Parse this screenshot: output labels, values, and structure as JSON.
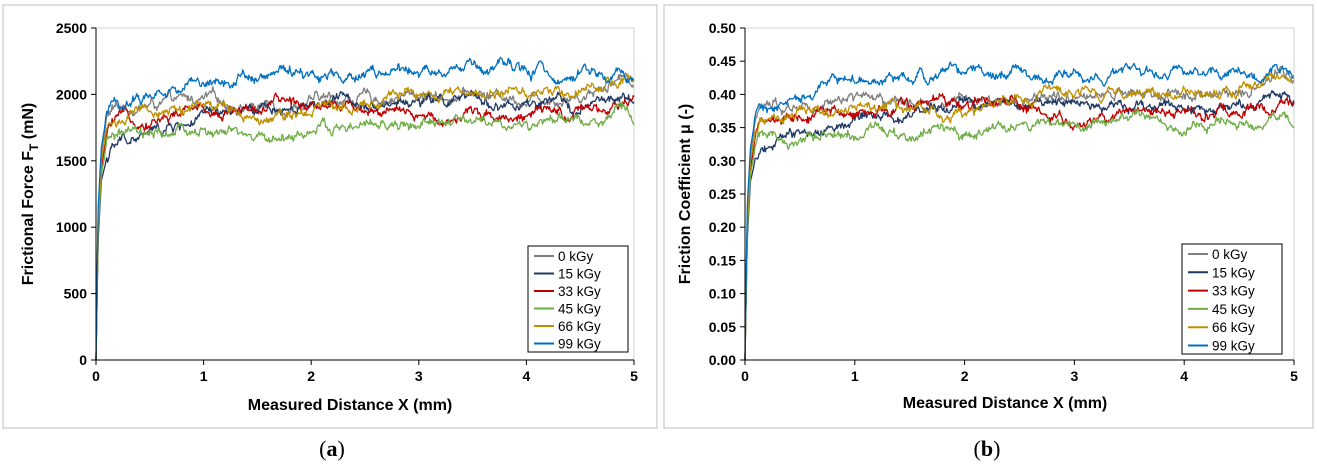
{
  "chart_data": [
    {
      "type": "line",
      "caption_open": "(",
      "caption_letter": "a",
      "caption_close": ")",
      "xlabel": "Measured Distance X (mm)",
      "ylabel_main": "Frictional Force F",
      "ylabel_sub": "T",
      "ylabel_unit": " (mN)",
      "xlim": [
        0,
        5
      ],
      "ylim": [
        0,
        2500
      ],
      "xticks": [
        0,
        1,
        2,
        3,
        4,
        5
      ],
      "xtick_labels": [
        "0",
        "1",
        "2",
        "3",
        "4",
        "5"
      ],
      "yticks": [
        0,
        500,
        1000,
        1500,
        2000,
        2500
      ],
      "ytick_labels": [
        "0",
        "500",
        "1000",
        "1500",
        "2000",
        "2500"
      ],
      "grid": false,
      "legend_position": "bottom-right",
      "series": [
        {
          "name": "0 kGy",
          "color": "#7f7f7f",
          "x": [
            0,
            0.02,
            0.05,
            0.1,
            0.15,
            0.25,
            0.5,
            0.75,
            1,
            1.5,
            2,
            2.5,
            3,
            3.5,
            4,
            4.5,
            4.9,
            5
          ],
          "values": [
            0,
            1100,
            1550,
            1820,
            1880,
            1900,
            1920,
            1930,
            1950,
            1920,
            1950,
            1970,
            1990,
            2000,
            1980,
            2000,
            2150,
            2100
          ]
        },
        {
          "name": "15 kGy",
          "color": "#1f3864",
          "x": [
            0,
            0.02,
            0.05,
            0.1,
            0.15,
            0.25,
            0.5,
            0.75,
            1,
            1.5,
            2,
            2.5,
            3,
            3.5,
            4,
            4.5,
            4.9,
            5
          ],
          "values": [
            0,
            900,
            1350,
            1520,
            1580,
            1650,
            1700,
            1760,
            1820,
            1850,
            1950,
            1960,
            1950,
            1940,
            1900,
            1900,
            1960,
            1900
          ]
        },
        {
          "name": "33 kGy",
          "color": "#c00000",
          "x": [
            0,
            0.02,
            0.05,
            0.1,
            0.15,
            0.25,
            0.5,
            0.75,
            1,
            1.5,
            2,
            2.5,
            3,
            3.5,
            4,
            4.5,
            4.9,
            5
          ],
          "values": [
            0,
            1000,
            1450,
            1700,
            1780,
            1800,
            1820,
            1850,
            1880,
            1900,
            1950,
            1920,
            1800,
            1870,
            1850,
            1830,
            1880,
            1950
          ]
        },
        {
          "name": "45 kGy",
          "color": "#70ad47",
          "x": [
            0,
            0.02,
            0.05,
            0.1,
            0.15,
            0.25,
            0.5,
            0.75,
            1,
            1.5,
            2,
            2.5,
            3,
            3.5,
            4,
            4.5,
            4.9,
            5
          ],
          "values": [
            0,
            950,
            1400,
            1620,
            1680,
            1700,
            1650,
            1700,
            1720,
            1650,
            1720,
            1750,
            1760,
            1790,
            1760,
            1800,
            1850,
            1800
          ]
        },
        {
          "name": "66 kGy",
          "color": "#bf9000",
          "x": [
            0,
            0.02,
            0.05,
            0.1,
            0.15,
            0.25,
            0.5,
            0.75,
            1,
            1.5,
            2,
            2.5,
            3,
            3.5,
            4,
            4.5,
            4.9,
            5
          ],
          "values": [
            0,
            1050,
            1500,
            1740,
            1800,
            1820,
            1850,
            1880,
            1900,
            1850,
            1920,
            1960,
            1980,
            2000,
            2020,
            2050,
            2120,
            2100
          ]
        },
        {
          "name": "99 kGy",
          "color": "#0070c0",
          "x": [
            0,
            0.02,
            0.05,
            0.1,
            0.15,
            0.25,
            0.5,
            0.75,
            1,
            1.5,
            2,
            2.5,
            3,
            3.5,
            4,
            4.5,
            4.9,
            5
          ],
          "values": [
            0,
            1150,
            1600,
            1850,
            1900,
            1920,
            2000,
            2050,
            2100,
            2150,
            2160,
            2170,
            2150,
            2180,
            2150,
            2160,
            2150,
            2080
          ]
        }
      ]
    },
    {
      "type": "line",
      "caption_open": "(",
      "caption_letter": "b",
      "caption_close": ")",
      "xlabel": "Measured Distance X (mm)",
      "ylabel_main": "Friction Coefficient μ (-)",
      "ylabel_sub": "",
      "ylabel_unit": "",
      "xlim": [
        0,
        5
      ],
      "ylim": [
        0,
        0.5
      ],
      "xticks": [
        0,
        1,
        2,
        3,
        4,
        5
      ],
      "xtick_labels": [
        "0",
        "1",
        "2",
        "3",
        "4",
        "5"
      ],
      "yticks": [
        0,
        0.05,
        0.1,
        0.15,
        0.2,
        0.25,
        0.3,
        0.35,
        0.4,
        0.45,
        0.5
      ],
      "ytick_labels": [
        "0.00",
        "0.05",
        "0.10",
        "0.15",
        "0.20",
        "0.25",
        "0.30",
        "0.35",
        "0.40",
        "0.45",
        "0.50"
      ],
      "grid": false,
      "legend_position": "bottom-right",
      "series": [
        {
          "name": "0 kGy",
          "color": "#7f7f7f",
          "x": [
            0,
            0.02,
            0.05,
            0.1,
            0.15,
            0.25,
            0.5,
            0.75,
            1,
            1.5,
            2,
            2.5,
            3,
            3.5,
            4,
            4.5,
            4.9,
            5
          ],
          "values": [
            0,
            0.22,
            0.31,
            0.364,
            0.376,
            0.38,
            0.384,
            0.386,
            0.39,
            0.384,
            0.39,
            0.394,
            0.398,
            0.4,
            0.396,
            0.4,
            0.43,
            0.42
          ]
        },
        {
          "name": "15 kGy",
          "color": "#1f3864",
          "x": [
            0,
            0.02,
            0.05,
            0.1,
            0.15,
            0.25,
            0.5,
            0.75,
            1,
            1.5,
            2,
            2.5,
            3,
            3.5,
            4,
            4.5,
            4.9,
            5
          ],
          "values": [
            0,
            0.18,
            0.27,
            0.304,
            0.316,
            0.33,
            0.34,
            0.352,
            0.364,
            0.37,
            0.39,
            0.392,
            0.39,
            0.388,
            0.38,
            0.38,
            0.392,
            0.38
          ]
        },
        {
          "name": "33 kGy",
          "color": "#c00000",
          "x": [
            0,
            0.02,
            0.05,
            0.1,
            0.15,
            0.25,
            0.5,
            0.75,
            1,
            1.5,
            2,
            2.5,
            3,
            3.5,
            4,
            4.5,
            4.9,
            5
          ],
          "values": [
            0,
            0.2,
            0.29,
            0.34,
            0.356,
            0.36,
            0.364,
            0.37,
            0.376,
            0.38,
            0.39,
            0.384,
            0.36,
            0.374,
            0.37,
            0.366,
            0.376,
            0.39
          ]
        },
        {
          "name": "45 kGy",
          "color": "#70ad47",
          "x": [
            0,
            0.02,
            0.05,
            0.1,
            0.15,
            0.25,
            0.5,
            0.75,
            1,
            1.5,
            2,
            2.5,
            3,
            3.5,
            4,
            4.5,
            4.9,
            5
          ],
          "values": [
            0,
            0.19,
            0.28,
            0.324,
            0.336,
            0.34,
            0.33,
            0.34,
            0.344,
            0.33,
            0.344,
            0.35,
            0.352,
            0.358,
            0.352,
            0.36,
            0.37,
            0.36
          ]
        },
        {
          "name": "66 kGy",
          "color": "#bf9000",
          "x": [
            0,
            0.02,
            0.05,
            0.1,
            0.15,
            0.25,
            0.5,
            0.75,
            1,
            1.5,
            2,
            2.5,
            3,
            3.5,
            4,
            4.5,
            4.9,
            5
          ],
          "values": [
            0,
            0.21,
            0.3,
            0.348,
            0.36,
            0.364,
            0.37,
            0.376,
            0.38,
            0.37,
            0.384,
            0.392,
            0.396,
            0.4,
            0.404,
            0.41,
            0.424,
            0.42
          ]
        },
        {
          "name": "99 kGy",
          "color": "#0070c0",
          "x": [
            0,
            0.02,
            0.05,
            0.1,
            0.15,
            0.25,
            0.5,
            0.75,
            1,
            1.5,
            2,
            2.5,
            3,
            3.5,
            4,
            4.5,
            4.9,
            5
          ],
          "values": [
            0,
            0.23,
            0.32,
            0.37,
            0.38,
            0.384,
            0.4,
            0.41,
            0.42,
            0.43,
            0.432,
            0.434,
            0.43,
            0.436,
            0.43,
            0.432,
            0.43,
            0.416
          ]
        }
      ]
    }
  ]
}
